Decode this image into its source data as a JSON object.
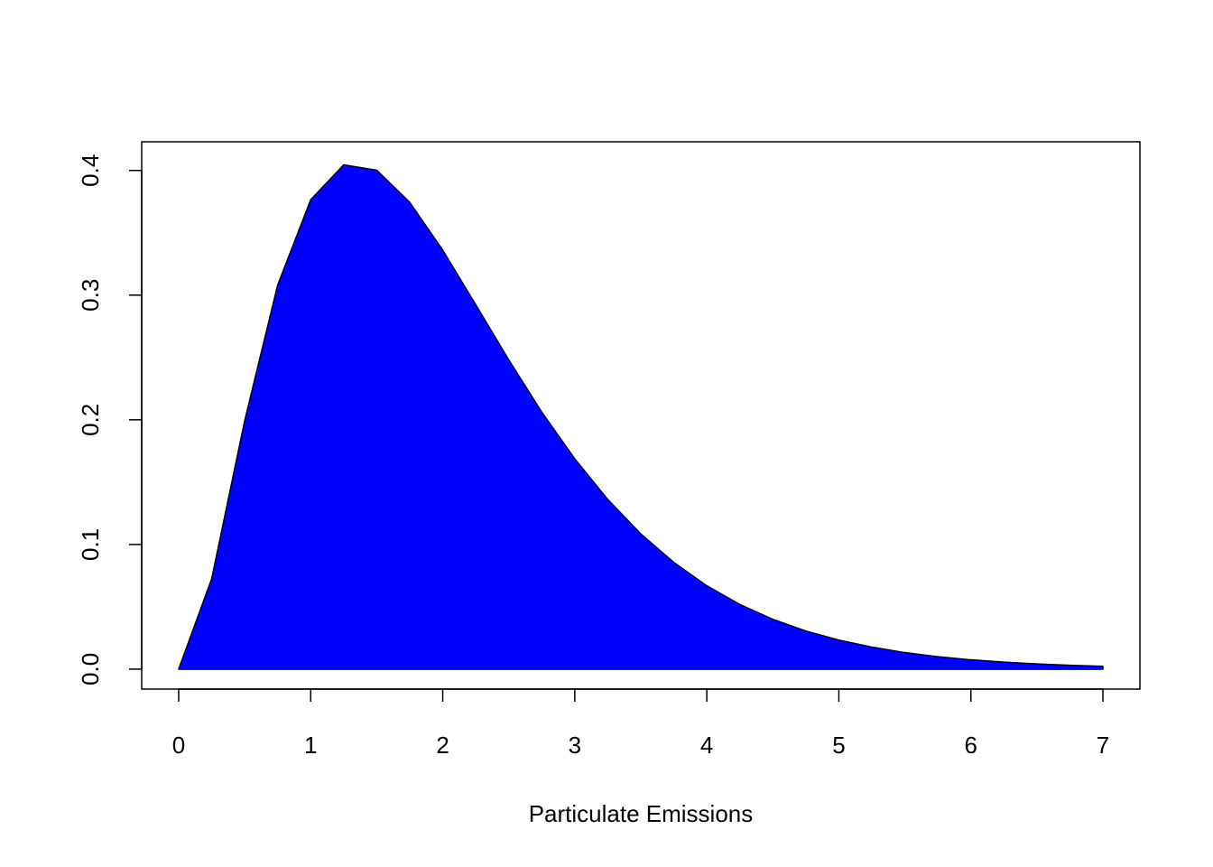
{
  "chart_data": {
    "type": "area",
    "x_label": "Particulate Emissions",
    "x": [
      0,
      0.25,
      0.5,
      0.75,
      1,
      1.25,
      1.5,
      1.75,
      2,
      2.25,
      2.5,
      2.75,
      3,
      3.25,
      3.5,
      3.75,
      4,
      4.25,
      4.5,
      4.75,
      5,
      5.25,
      5.5,
      5.75,
      6,
      6.25,
      6.5,
      6.75,
      7
    ],
    "values": [
      0,
      0.0725,
      0.1993,
      0.3082,
      0.3765,
      0.4045,
      0.4002,
      0.3744,
      0.3361,
      0.2923,
      0.2481,
      0.2062,
      0.1687,
      0.1361,
      0.1085,
      0.0856,
      0.0669,
      0.0519,
      0.04,
      0.0306,
      0.0233,
      0.0177,
      0.0133,
      0.01,
      0.0075,
      0.0056,
      0.0042,
      0.0031,
      0.0023
    ],
    "color": "#0000ff",
    "xlim": [
      -0.28,
      7.28
    ],
    "xticks": [
      0,
      1,
      2,
      3,
      4,
      5,
      6,
      7
    ],
    "ylim": [
      -0.016,
      0.423
    ],
    "yticks": [
      {
        "value": 0,
        "label": "0.0"
      },
      0.1,
      0.2,
      0.3,
      0.4
    ]
  }
}
